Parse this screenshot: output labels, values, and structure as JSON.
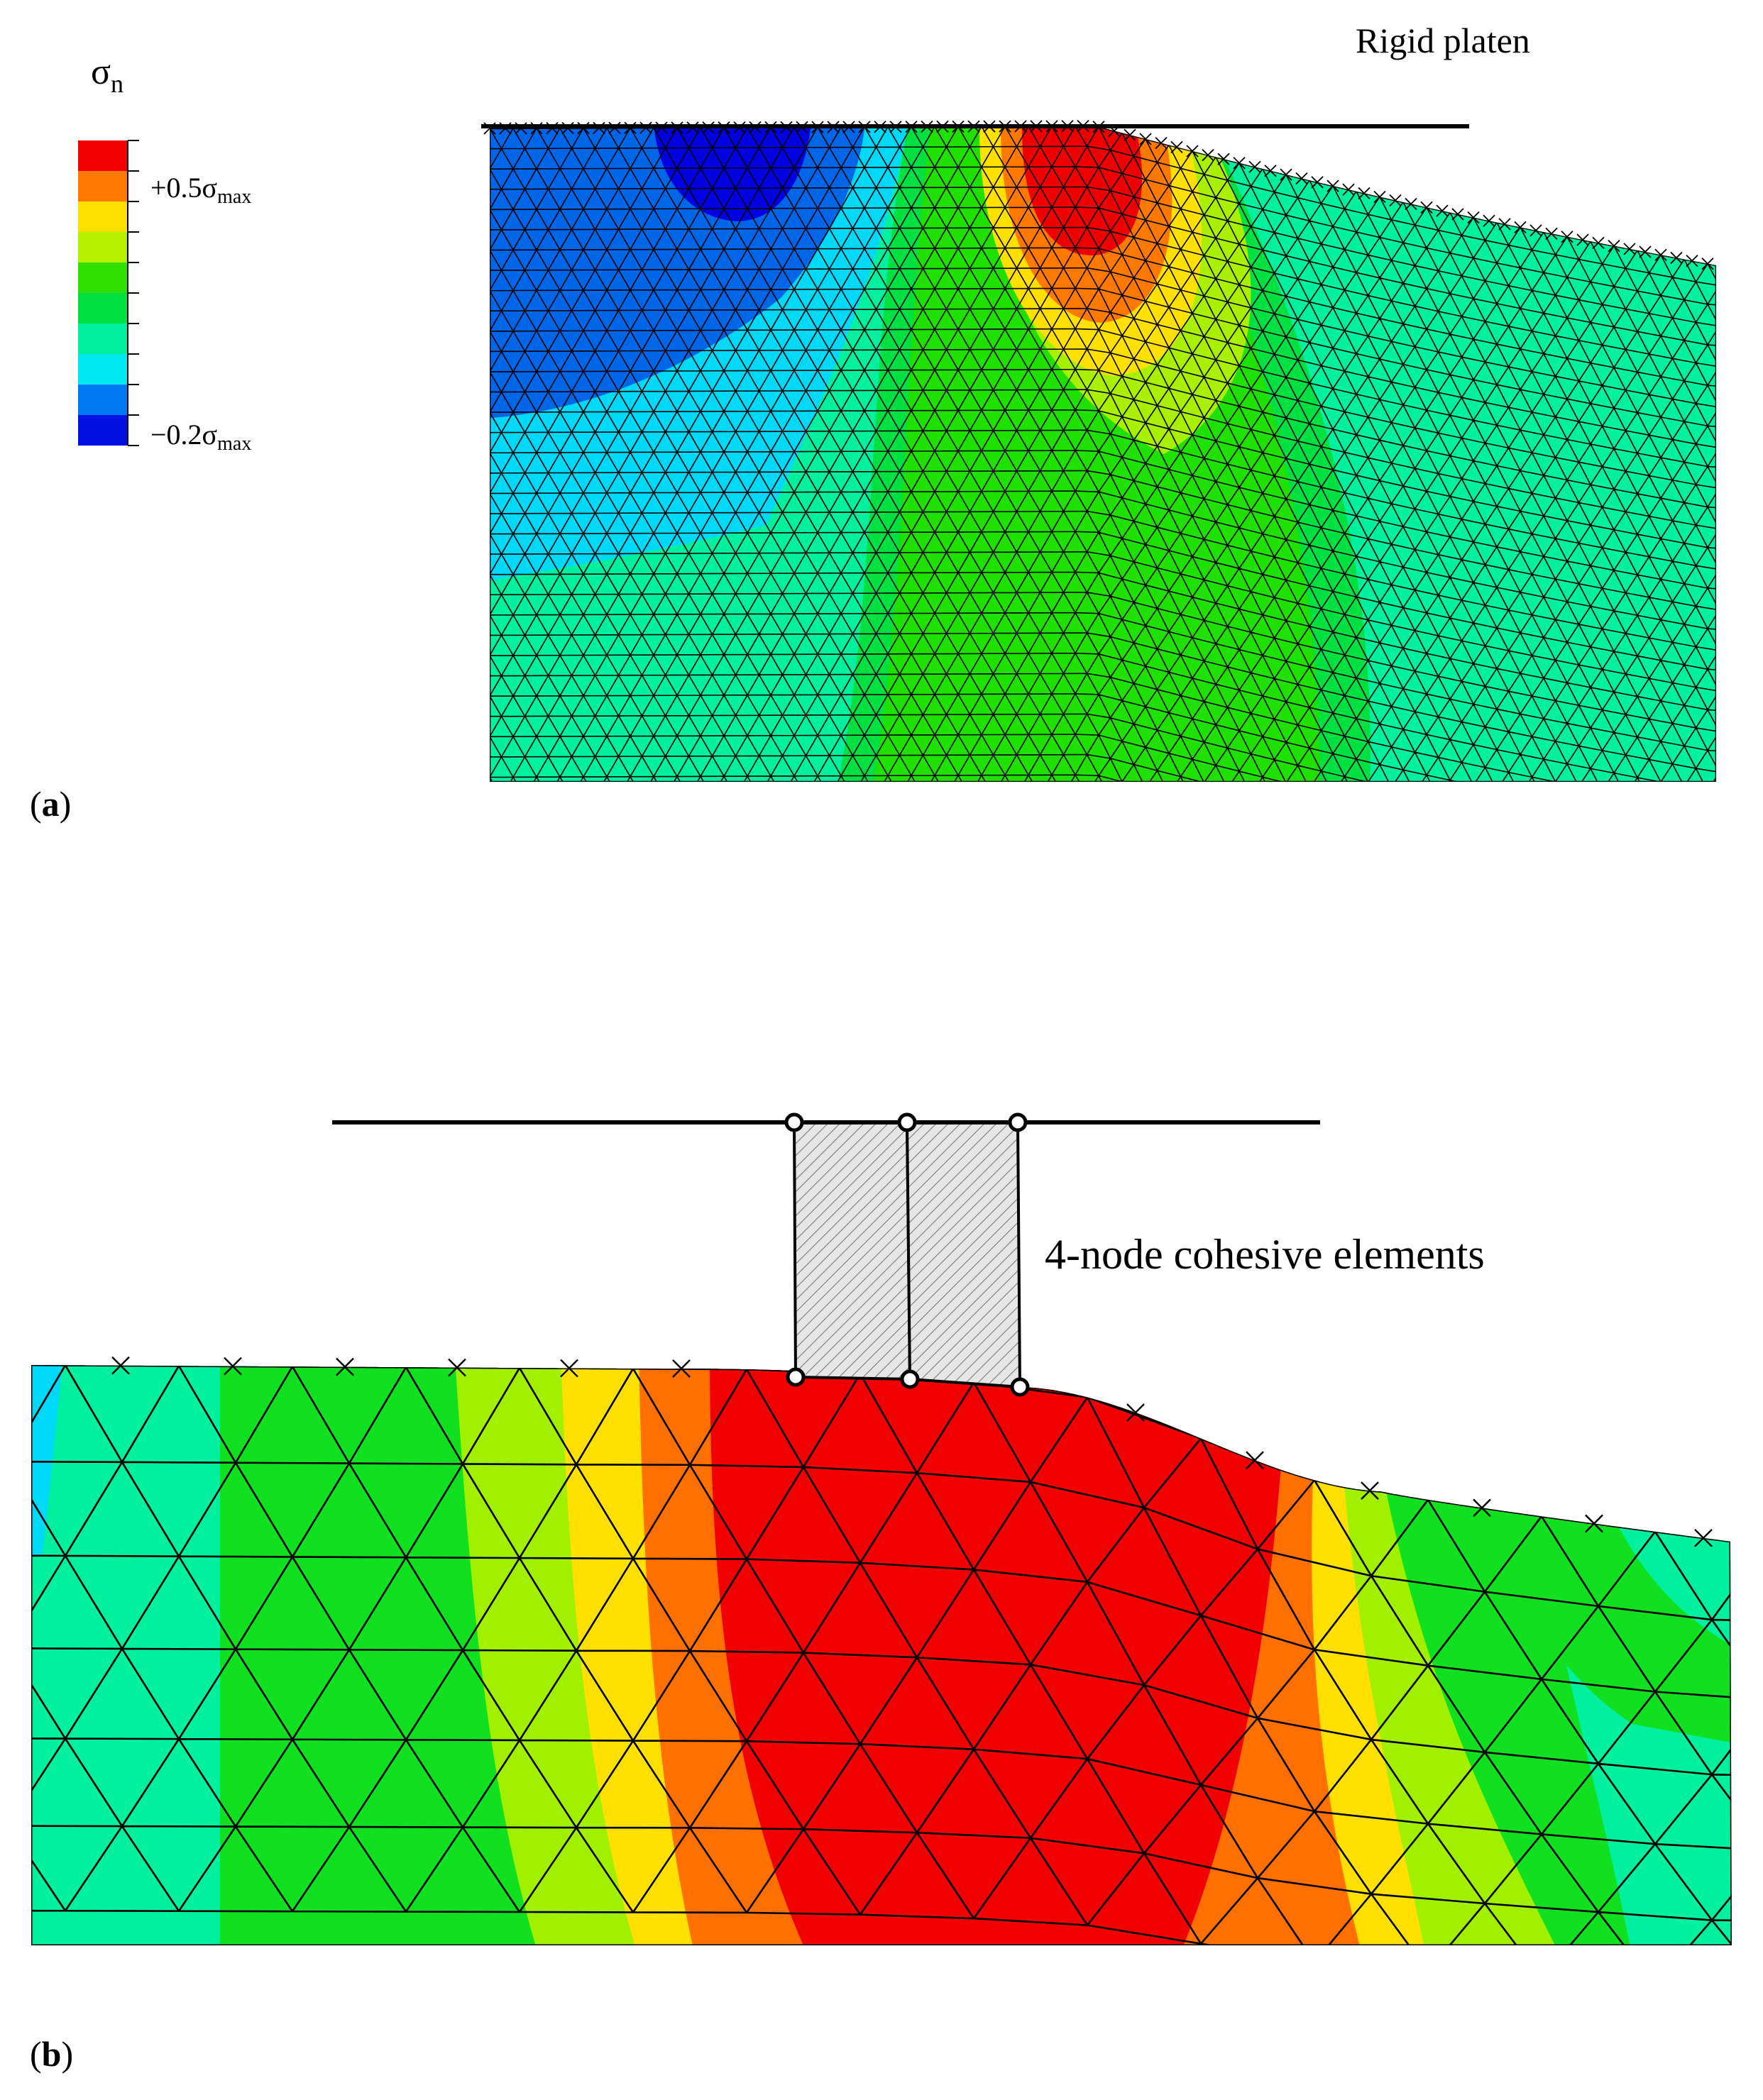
{
  "legend": {
    "symbol": "σ",
    "symbol_sub": "n",
    "upper_prefix": "+0.5σ",
    "upper_sub": "max",
    "lower_prefix": "−0.2σ",
    "lower_sub": "max",
    "colors": [
      "#f00000",
      "#ff7800",
      "#ffe000",
      "#b8f000",
      "#30e000",
      "#00e040",
      "#00f0a0",
      "#00e8f0",
      "#0078f0",
      "#0010e0"
    ]
  },
  "panel_a": {
    "tag_open": "(",
    "tag_letter": "a",
    "tag_close": ")",
    "platen_label": "Rigid platen",
    "contour_colors": {
      "deep_blue": "#0000e0",
      "blue": "#0066e8",
      "cyan": "#00d8f8",
      "teal": "#00f0a0",
      "green": "#00e040",
      "bright_green": "#20e000",
      "yellow_green": "#a8f000",
      "yellow": "#ffe000",
      "orange": "#ff7800",
      "red": "#ee0000"
    }
  },
  "panel_b": {
    "tag_open": "(",
    "tag_letter": "b",
    "tag_close": ")",
    "cohesive_label": "4-node cohesive elements",
    "contour_colors": {
      "cyan": "#00d8f8",
      "teal": "#00f0a0",
      "green": "#10e020",
      "yellow_green": "#a0f000",
      "yellow": "#ffe000",
      "orange": "#ff7000",
      "red": "#f00000"
    }
  }
}
